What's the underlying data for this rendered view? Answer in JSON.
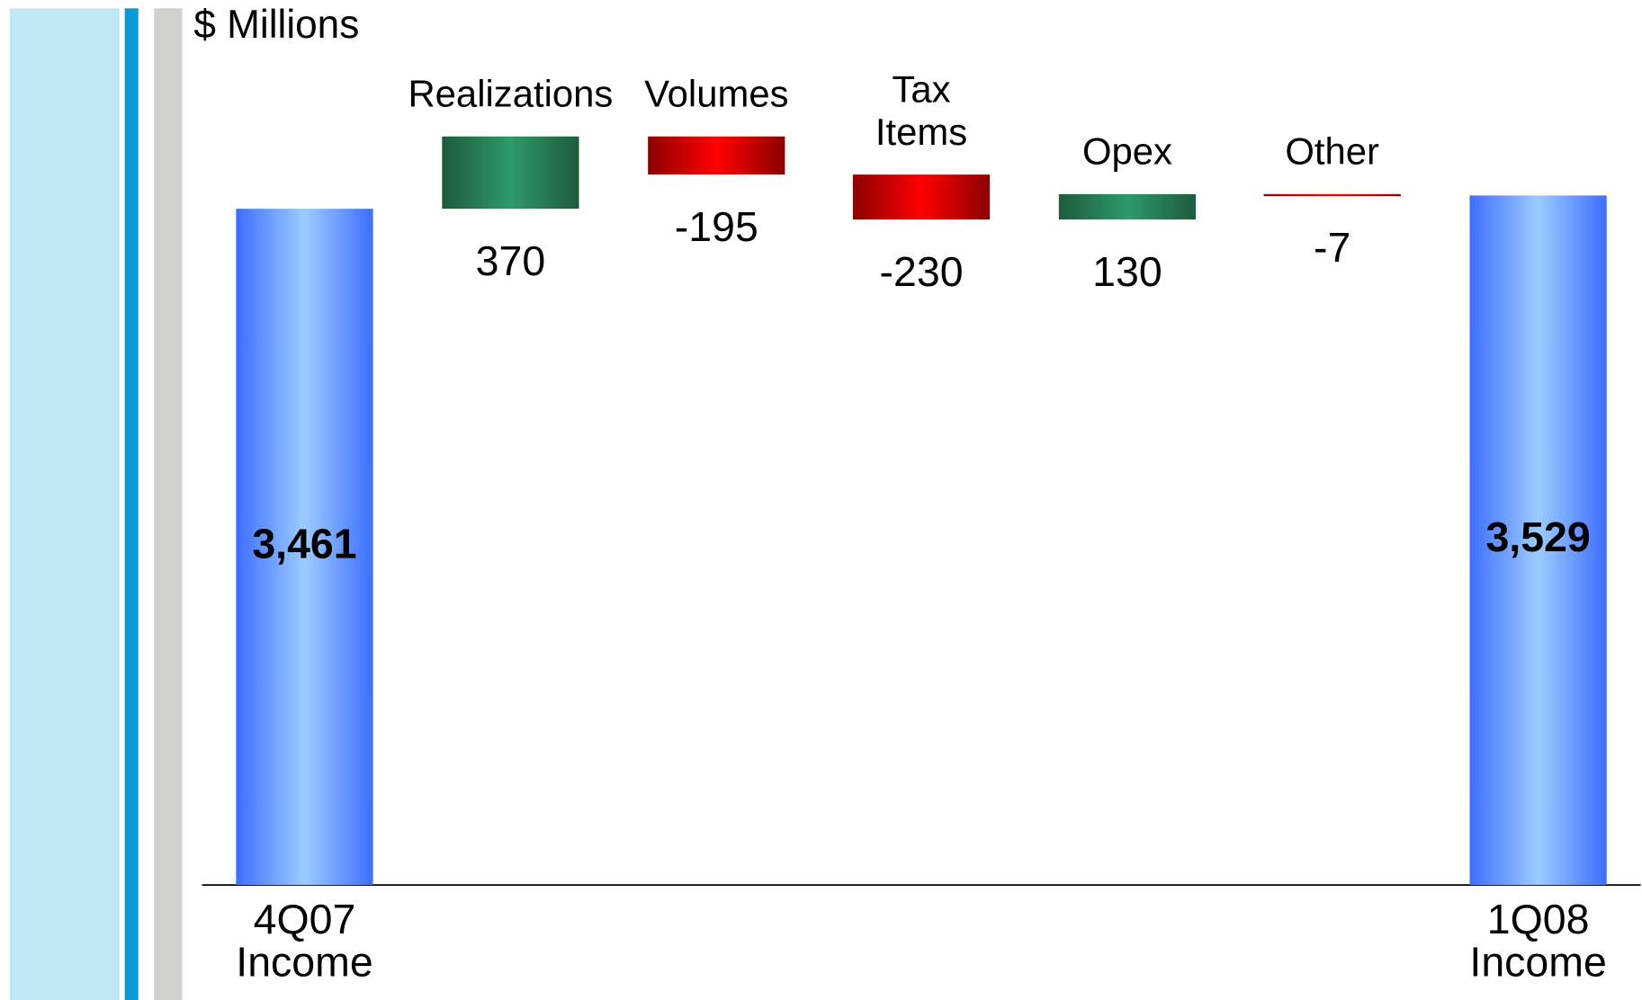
{
  "chart_data": {
    "type": "waterfall",
    "y_label": "$ Millions",
    "categories": [
      "4Q07 Income",
      "Realizations",
      "Volumes",
      "Tax Items",
      "Opex",
      "Other",
      "1Q08 Income"
    ],
    "values": [
      3461,
      370,
      -195,
      -230,
      130,
      -7,
      3529
    ],
    "value_labels": [
      "3,461",
      "370",
      "-195",
      "-230",
      "130",
      "-7",
      "3,529"
    ],
    "totals": [
      true,
      false,
      false,
      false,
      false,
      false,
      true
    ],
    "ylim": [
      0,
      4000
    ],
    "colors": {
      "total": [
        "#3d6eff",
        "#9dcbff"
      ],
      "increase": [
        "#1e5a3c",
        "#2e9a68"
      ],
      "decrease": [
        "#8b0000",
        "#ff0000"
      ]
    }
  }
}
